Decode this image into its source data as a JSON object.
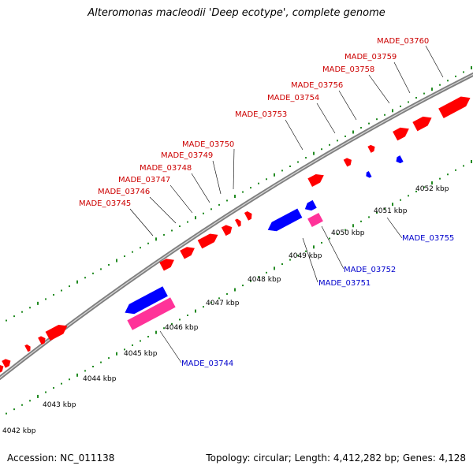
{
  "title": "Alteromonas macleodii 'Deep ecotype', complete genome",
  "footer": {
    "accession": "Accession: NC_011138",
    "summary": "Topology: circular; Length: 4,412,282 bp; Genes: 4,128"
  },
  "colors": {
    "forward_cds": "#ff0000",
    "reverse_cds": "#0000ff",
    "reverse_rna": "#ff3399",
    "forward_label": "#cc0000",
    "reverse_label": "#0000cc",
    "backbone": "#808080",
    "ticks": "#228b22"
  },
  "kbp_labels": [
    "4042 kbp",
    "4043 kbp",
    "4044 kbp",
    "4045 kbp",
    "4046 kbp",
    "4047 kbp",
    "4048 kbp",
    "4049 kbp",
    "4050 kbp",
    "4051 kbp",
    "4052 kbp"
  ],
  "forward_gene_labels": [
    "MADE_03760",
    "MADE_03759",
    "MADE_03758",
    "MADE_03756",
    "MADE_03754",
    "MADE_03753",
    "MADE_03750",
    "MADE_03749",
    "MADE_03748",
    "MADE_03747",
    "MADE_03746",
    "MADE_03745"
  ],
  "reverse_gene_labels": [
    "MADE_03755",
    "MADE_03752",
    "MADE_03751",
    "MADE_03744"
  ]
}
